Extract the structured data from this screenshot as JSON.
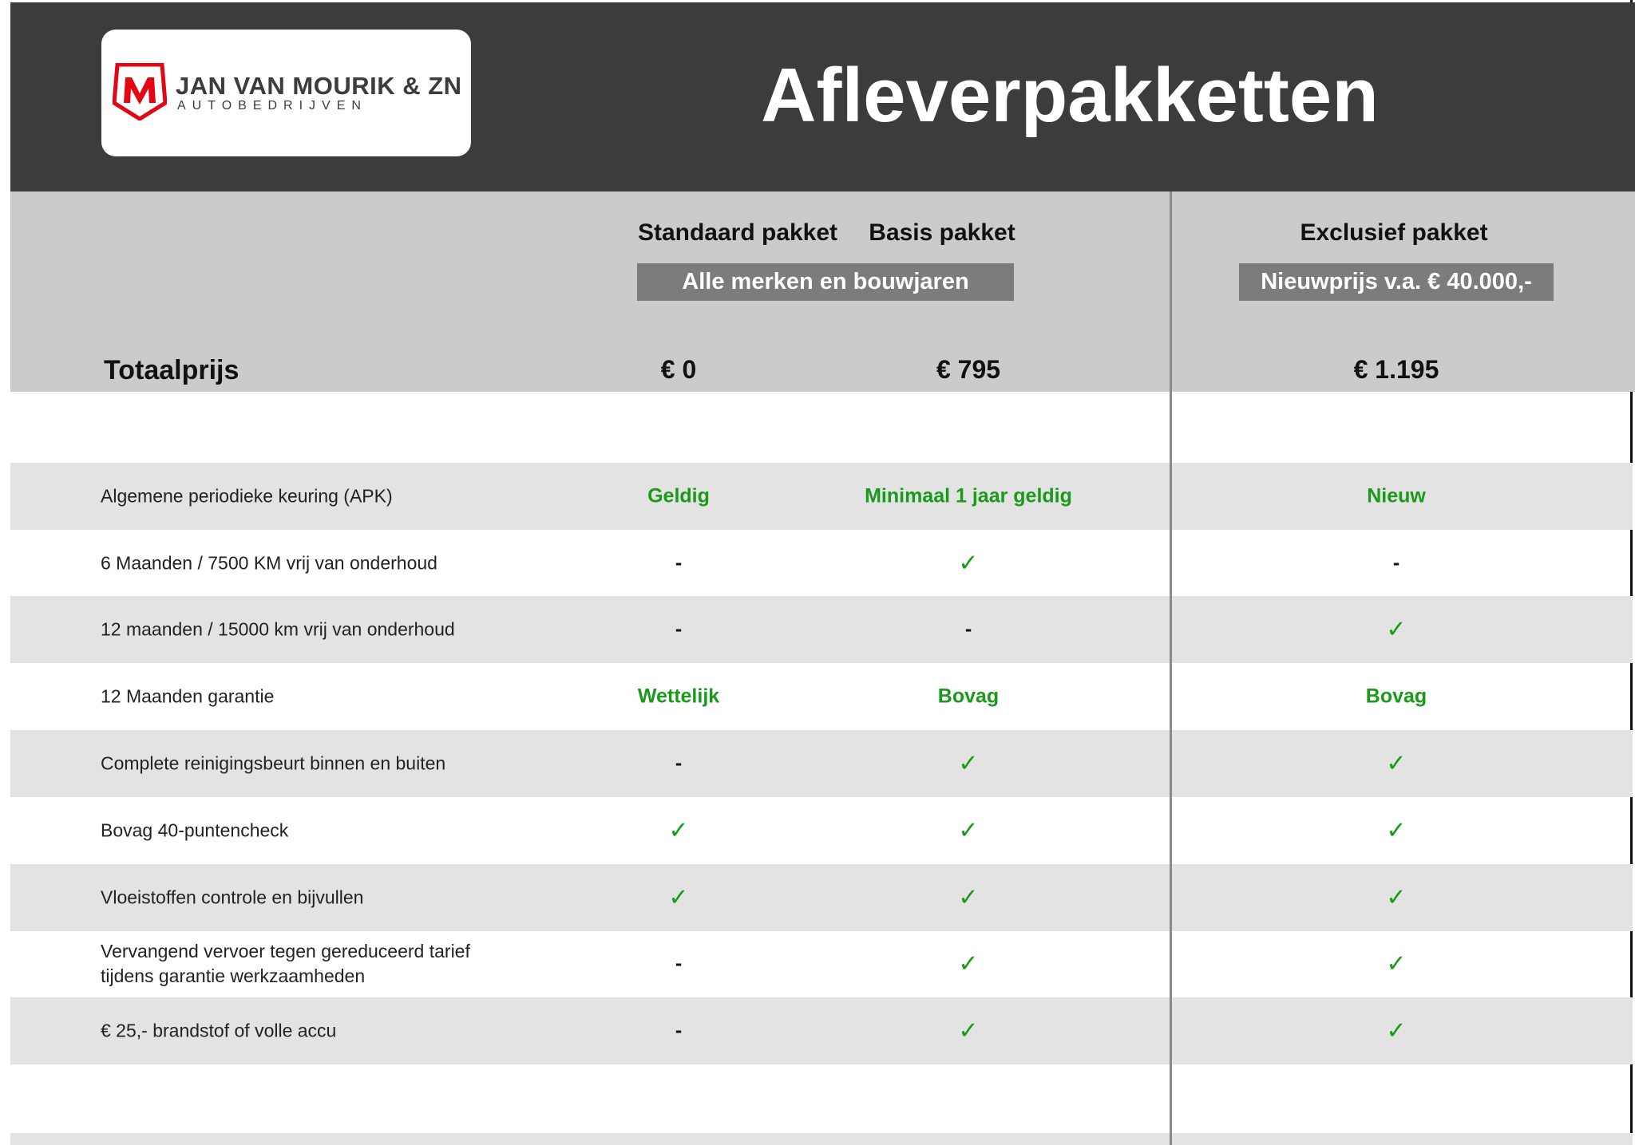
{
  "logo": {
    "name": "JAN VAN MOURIK & ZN",
    "sub": "AUTOBEDRIJVEN",
    "mark": "M",
    "color": "#e30613"
  },
  "title": "Afleverpakketten",
  "columns": {
    "standaard": "Standaard pakket",
    "basis": "Basis pakket",
    "exclusief": "Exclusief pakket",
    "badge_left": "Alle merken en bouwjaren",
    "badge_right": "Nieuwprijs v.a. € 40.000,-"
  },
  "total": {
    "label": "Totaalprijs",
    "standaard": "€ 0",
    "basis": "€ 795",
    "exclusief": "€ 1.195"
  },
  "colors": {
    "green": "#1a9a1a",
    "header": "#3c3c3b"
  },
  "rows": [
    {
      "label": "Algemene periodieke keuring (APK)",
      "standaard": "Geldig",
      "basis": "Minimaal 1 jaar geldig",
      "exclusief": "Nieuw"
    },
    {
      "label": "6 Maanden / 7500 KM vrij van onderhoud",
      "standaard": "-",
      "basis": "✓",
      "exclusief": "-"
    },
    {
      "label": "12 maanden / 15000 km vrij van onderhoud",
      "standaard": "-",
      "basis": "-",
      "exclusief": "✓"
    },
    {
      "label": "12 Maanden  garantie",
      "standaard": "Wettelijk",
      "basis": "Bovag",
      "exclusief": "Bovag"
    },
    {
      "label": "Complete reinigingsbeurt binnen en buiten",
      "standaard": "-",
      "basis": "✓",
      "exclusief": "✓"
    },
    {
      "label": "Bovag 40-puntencheck",
      "standaard": "✓",
      "basis": "✓",
      "exclusief": "✓"
    },
    {
      "label": "Vloeistoffen controle en bijvullen",
      "standaard": "✓",
      "basis": "✓",
      "exclusief": "✓"
    },
    {
      "label": "Vervangend vervoer tegen gereduceerd tarief tijdens garantie werkzaamheden",
      "standaard": "-",
      "basis": "✓",
      "exclusief": "✓"
    },
    {
      "label": "€ 25,- brandstof of  volle accu",
      "standaard": "-",
      "basis": "✓",
      "exclusief": "✓"
    }
  ]
}
